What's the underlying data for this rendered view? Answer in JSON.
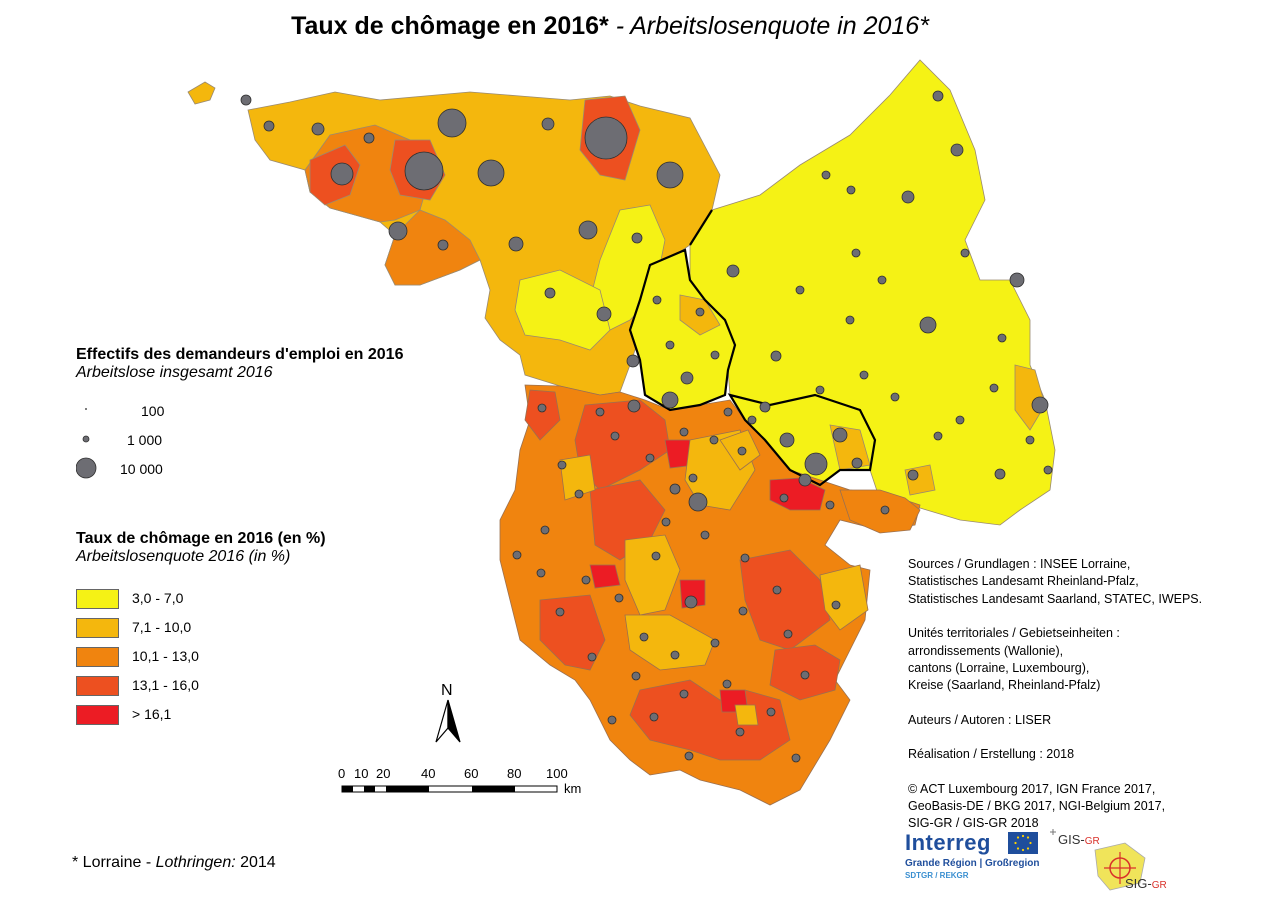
{
  "title": {
    "fr": "Taux de chômage en 2016*",
    "separator": " - ",
    "de": "Arbeitslosenquote in 2016*"
  },
  "legend_circles": {
    "title_fr": "Effectifs des demandeurs d'emploi en 2016",
    "title_de": "Arbeitslose insgesamt 2016",
    "items": [
      {
        "label": "100",
        "value": 100
      },
      {
        "label": "1 000",
        "value": 1000
      },
      {
        "label": "10 000",
        "value": 10000
      }
    ]
  },
  "legend_rates": {
    "title_fr": "Taux de chômage en 2016 (en %)",
    "title_de": "Arbeitslosenquote 2016 (in %)",
    "classes": [
      {
        "label": "3,0 - 7,0",
        "color": "#f5f215"
      },
      {
        "label": "7,1 - 10,0",
        "color": "#f4b70d"
      },
      {
        "label": "10,1 - 13,0",
        "color": "#f0840f"
      },
      {
        "label": "13,1 - 16,0",
        "color": "#ed5020"
      },
      {
        "label": "> 16,1",
        "color": "#ec1c24"
      }
    ]
  },
  "north_arrow": {
    "label": "N"
  },
  "scale_bar": {
    "ticks": [
      "0",
      "10",
      "20",
      "40",
      "60",
      "80",
      "100"
    ],
    "unit": "km"
  },
  "credits": {
    "sources": [
      "Sources / Grundlagen : INSEE Lorraine,",
      "Statistisches Landesamt Rheinland-Pfalz,",
      "Statistisches Landesamt Saarland, STATEC, IWEPS."
    ],
    "units": [
      "Unités territoriales / Gebietseinheiten :",
      "arrondissements (Wallonie),",
      "cantons (Lorraine, Luxembourg),",
      "Kreise (Saarland, Rheinland-Pfalz)"
    ],
    "authors": "Auteurs / Autoren : LISER",
    "realisation": "Réalisation / Erstellung : 2018",
    "copyright": [
      "© ACT Luxembourg 2017, IGN France 2017,",
      "GeoBasis-DE / BKG 2017, NGI-Belgium 2017,",
      "SIG-GR / GIS-GR 2018"
    ]
  },
  "footnote": {
    "prefix": "* Lorraine - ",
    "de": "Lothringen:",
    "year": " 2014"
  },
  "logos": {
    "interreg": "Interreg",
    "interreg_sub": "Grande Région | Großregion",
    "interreg_sub2": "SDTGR / REKGR",
    "gis_gr": "GIS-",
    "gis_gr_suffix": "GR",
    "sig_gr": "SIG-",
    "sig_gr_suffix": "GR"
  }
}
